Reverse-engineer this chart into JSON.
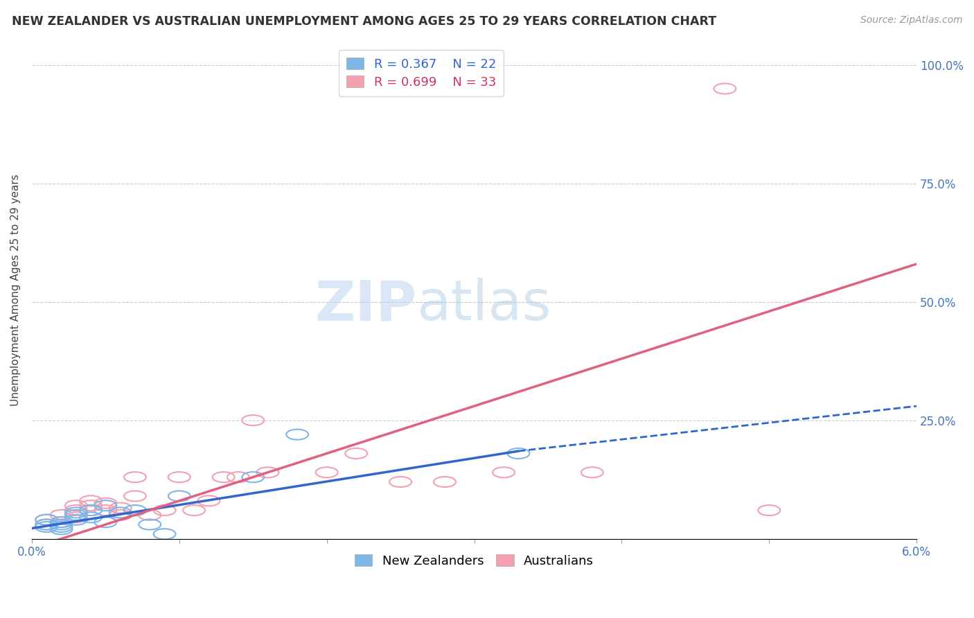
{
  "title": "NEW ZEALANDER VS AUSTRALIAN UNEMPLOYMENT AMONG AGES 25 TO 29 YEARS CORRELATION CHART",
  "source": "Source: ZipAtlas.com",
  "ylabel": "Unemployment Among Ages 25 to 29 years",
  "xlim": [
    0.0,
    0.06
  ],
  "ylim": [
    0.0,
    1.05
  ],
  "xticks": [
    0.0,
    0.01,
    0.02,
    0.03,
    0.04,
    0.05,
    0.06
  ],
  "xticklabels": [
    "0.0%",
    "",
    "",
    "",
    "",
    "",
    "6.0%"
  ],
  "yticks": [
    0.0,
    0.25,
    0.5,
    0.75,
    1.0
  ],
  "right_yticklabels": [
    "",
    "25.0%",
    "50.0%",
    "75.0%",
    "100.0%"
  ],
  "nz_color": "#7EB6E8",
  "au_color": "#F4A0B0",
  "nz_line_color": "#3366CC",
  "au_line_color": "#E06080",
  "nz_R": 0.367,
  "nz_N": 22,
  "au_R": 0.699,
  "au_N": 33,
  "nz_points": [
    [
      0.001,
      0.025
    ],
    [
      0.001,
      0.03
    ],
    [
      0.001,
      0.04
    ],
    [
      0.002,
      0.02
    ],
    [
      0.002,
      0.025
    ],
    [
      0.002,
      0.03
    ],
    [
      0.002,
      0.035
    ],
    [
      0.003,
      0.04
    ],
    [
      0.003,
      0.05
    ],
    [
      0.003,
      0.055
    ],
    [
      0.004,
      0.045
    ],
    [
      0.004,
      0.06
    ],
    [
      0.005,
      0.035
    ],
    [
      0.005,
      0.07
    ],
    [
      0.006,
      0.055
    ],
    [
      0.007,
      0.06
    ],
    [
      0.008,
      0.03
    ],
    [
      0.009,
      0.01
    ],
    [
      0.01,
      0.09
    ],
    [
      0.015,
      0.13
    ],
    [
      0.018,
      0.22
    ],
    [
      0.033,
      0.18
    ]
  ],
  "au_points": [
    [
      0.001,
      0.03
    ],
    [
      0.001,
      0.04
    ],
    [
      0.002,
      0.035
    ],
    [
      0.002,
      0.05
    ],
    [
      0.003,
      0.045
    ],
    [
      0.003,
      0.06
    ],
    [
      0.003,
      0.07
    ],
    [
      0.004,
      0.06
    ],
    [
      0.004,
      0.07
    ],
    [
      0.004,
      0.08
    ],
    [
      0.005,
      0.06
    ],
    [
      0.005,
      0.075
    ],
    [
      0.006,
      0.05
    ],
    [
      0.006,
      0.065
    ],
    [
      0.007,
      0.09
    ],
    [
      0.007,
      0.13
    ],
    [
      0.008,
      0.05
    ],
    [
      0.009,
      0.06
    ],
    [
      0.01,
      0.13
    ],
    [
      0.011,
      0.06
    ],
    [
      0.012,
      0.08
    ],
    [
      0.013,
      0.13
    ],
    [
      0.014,
      0.13
    ],
    [
      0.015,
      0.25
    ],
    [
      0.016,
      0.14
    ],
    [
      0.02,
      0.14
    ],
    [
      0.022,
      0.18
    ],
    [
      0.025,
      0.12
    ],
    [
      0.028,
      0.12
    ],
    [
      0.032,
      0.14
    ],
    [
      0.038,
      0.14
    ],
    [
      0.047,
      0.95
    ],
    [
      0.05,
      0.06
    ]
  ],
  "nz_line": {
    "x0": 0.0,
    "y0": 0.022,
    "x1": 0.033,
    "y1": 0.185,
    "x1_dash": 0.06,
    "y1_dash": 0.28
  },
  "au_line": {
    "x0": 0.0,
    "y0": -0.02,
    "x1": 0.06,
    "y1": 0.58
  },
  "watermark_zip": "ZIP",
  "watermark_atlas": "atlas",
  "legend_labels": [
    "New Zealanders",
    "Australians"
  ]
}
